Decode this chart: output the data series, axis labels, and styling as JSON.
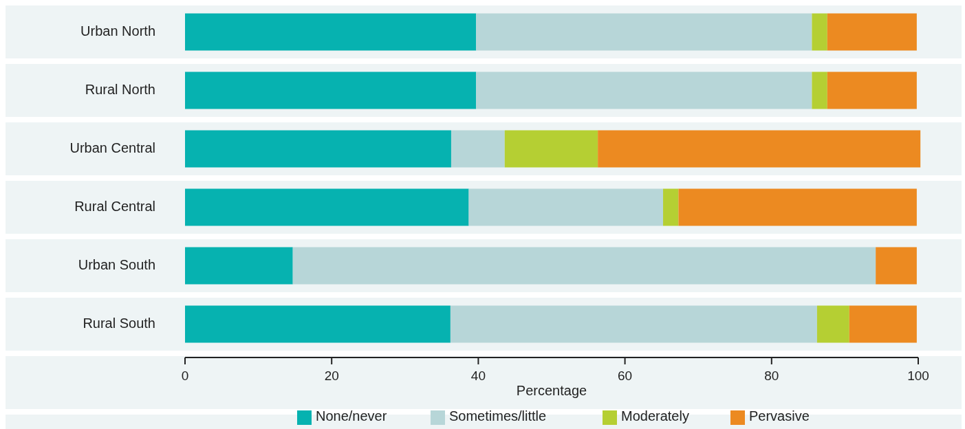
{
  "chart_data": {
    "type": "bar",
    "orientation": "horizontal",
    "stacked": true,
    "xlabel": "Percentage",
    "categories": [
      "Urban North",
      "Rural North",
      "Urban Central",
      "Rural Central",
      "Urban South",
      "Rural South"
    ],
    "series": [
      {
        "name": "None/never",
        "color": "#06b2b0",
        "values": [
          39.7,
          39.7,
          36.3,
          38.7,
          14.7,
          36.2
        ]
      },
      {
        "name": "Sometimes/little",
        "color": "#b7d6d8",
        "values": [
          45.8,
          45.8,
          7.3,
          26.5,
          79.5,
          50.0
        ]
      },
      {
        "name": "Moderately",
        "color": "#b5cf33",
        "values": [
          2.1,
          2.1,
          12.7,
          2.1,
          0,
          4.4
        ]
      },
      {
        "name": "Pervasive",
        "color": "#ec8a21",
        "values": [
          12.2,
          12.2,
          44.0,
          32.5,
          5.6,
          9.2
        ]
      }
    ],
    "xlim": [
      0,
      100
    ],
    "xticks": [
      0,
      20,
      40,
      60,
      80,
      100
    ],
    "legend": "bottom",
    "grid": false
  }
}
